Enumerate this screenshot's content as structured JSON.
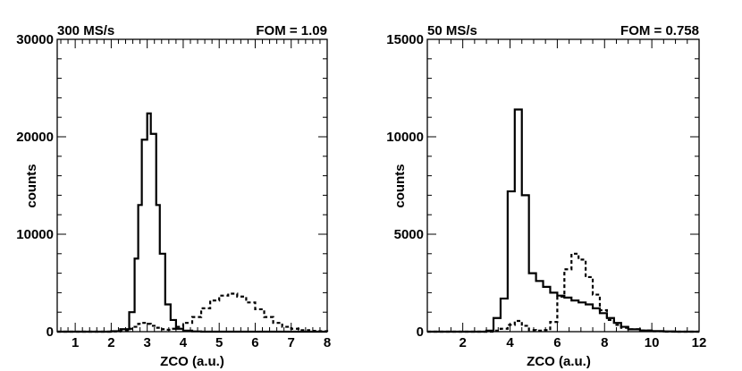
{
  "chart_data": [
    {
      "type": "histogram",
      "top_left_label": "300 MS/s",
      "top_right_label": "FOM = 1.09",
      "xlabel": "ZCO (a.u.)",
      "ylabel": "counts",
      "xlim": [
        0.5,
        8
      ],
      "ylim": [
        0,
        30000
      ],
      "x_ticks": [
        "1",
        "2",
        "3",
        "4",
        "5",
        "6",
        "7",
        "8"
      ],
      "y_ticks": [
        "0",
        "10000",
        "20000",
        "30000"
      ],
      "bin_edges": [
        0.5,
        0.75,
        1.0,
        1.25,
        1.5,
        1.75,
        2.0,
        2.25,
        2.5,
        2.65,
        2.75,
        2.85,
        3.0,
        3.1,
        3.25,
        3.35,
        3.5,
        3.65,
        3.8,
        4.0,
        4.25,
        4.5,
        4.75,
        5.0,
        5.25,
        5.5,
        5.75,
        6.0,
        6.25,
        6.5,
        6.75,
        7.0,
        7.25,
        7.5,
        7.75,
        8.0
      ],
      "series": [
        {
          "style": "solid",
          "values": [
            0,
            0,
            0,
            0,
            0,
            0,
            50,
            250,
            2000,
            7500,
            13000,
            19700,
            22400,
            20300,
            13000,
            8000,
            2800,
            1200,
            300,
            100,
            30,
            0,
            0,
            0,
            0,
            0,
            0,
            0,
            0,
            0,
            0,
            0,
            0,
            0,
            0
          ]
        },
        {
          "style": "dashed",
          "values": [
            0,
            0,
            0,
            0,
            0,
            0,
            20,
            100,
            300,
            500,
            800,
            900,
            800,
            600,
            400,
            250,
            200,
            300,
            500,
            900,
            1500,
            2400,
            3200,
            3700,
            3900,
            3600,
            3000,
            2300,
            1500,
            900,
            500,
            300,
            150,
            80,
            50
          ]
        }
      ]
    },
    {
      "type": "histogram",
      "top_left_label": "50 MS/s",
      "top_right_label": "FOM = 0.758",
      "xlabel": "ZCO (a.u.)",
      "ylabel": "counts",
      "xlim": [
        0.5,
        12
      ],
      "ylim": [
        0,
        15000
      ],
      "x_ticks": [
        "2",
        "4",
        "6",
        "8",
        "10",
        "12"
      ],
      "y_ticks": [
        "0",
        "5000",
        "10000",
        "15000"
      ],
      "bin_edges": [
        0.5,
        1,
        1.5,
        2,
        2.5,
        3,
        3.3,
        3.6,
        3.9,
        4.2,
        4.5,
        4.8,
        5.1,
        5.4,
        5.7,
        6.0,
        6.3,
        6.6,
        6.9,
        7.2,
        7.5,
        7.8,
        8.1,
        8.4,
        8.7,
        9.0,
        9.5,
        10,
        10.5,
        11,
        11.5,
        12
      ],
      "series": [
        {
          "style": "solid",
          "values": [
            0,
            0,
            0,
            0,
            0,
            50,
            700,
            1700,
            7200,
            11400,
            7000,
            3000,
            2600,
            2300,
            2000,
            1850,
            1750,
            1600,
            1500,
            1400,
            1200,
            950,
            700,
            450,
            250,
            120,
            60,
            30,
            10,
            0,
            0
          ]
        },
        {
          "style": "dashed",
          "values": [
            0,
            0,
            0,
            0,
            0,
            0,
            50,
            150,
            350,
            550,
            300,
            80,
            50,
            80,
            500,
            1800,
            3200,
            4000,
            3700,
            2800,
            1900,
            1100,
            600,
            350,
            200,
            120,
            60,
            20,
            0,
            0,
            0
          ]
        }
      ]
    }
  ]
}
